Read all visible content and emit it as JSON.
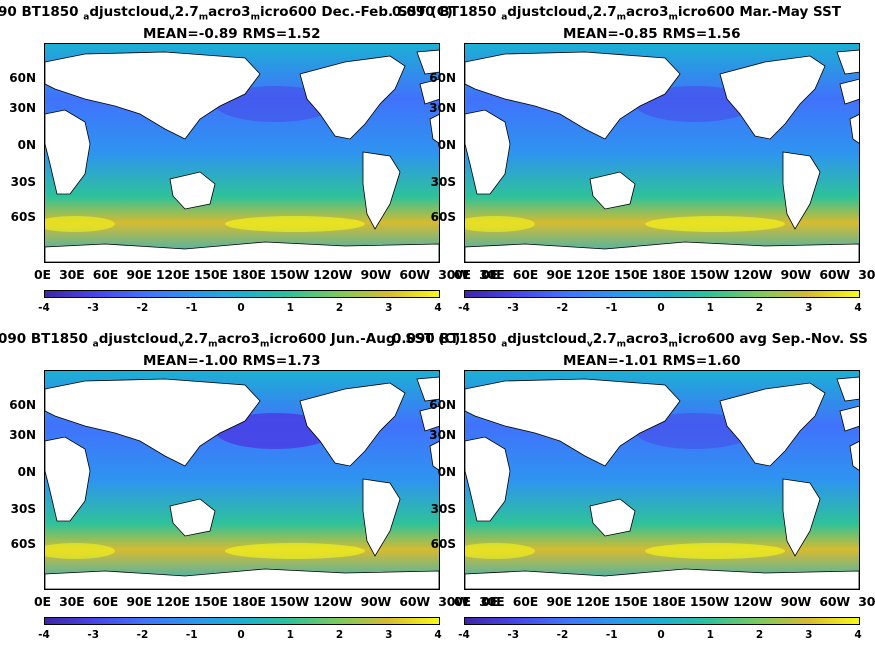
{
  "panels": [
    {
      "title_left": "90 BT1850",
      "title_s1": "djustcloud",
      "title_s2": "2.7",
      "title_s3": "acro3",
      "title_s4": "icro600",
      "title_overlap": "Dec.-Feb. SST (C)",
      "sub_a": "a",
      "sub_v": "v",
      "sub_m1": "m",
      "sub_m2": "m",
      "stats": "MEAN=-0.89   RMS=1.52"
    },
    {
      "title_left": "0.090 BT1850",
      "title_s1": "djustcloud",
      "title_s2": "2.7",
      "title_s3": "acro3",
      "title_s4": "icro600 Mar.-May SST",
      "title_overlap": "",
      "sub_a": "a",
      "sub_v": "v",
      "sub_m1": "m",
      "sub_m2": "m",
      "stats": "MEAN=-0.85   RMS=1.56"
    },
    {
      "title_left": "090 BT1850",
      "title_s1": "djustcloud",
      "title_s2": "2.7",
      "title_s3": "acro3",
      "title_s4": "icro600",
      "title_overlap": "Jun.-Aug. SST (C)",
      "sub_a": "a",
      "sub_v": "v",
      "sub_m1": "m",
      "sub_m2": "m",
      "stats": "MEAN=-1.00   RMS=1.73"
    },
    {
      "title_left": "0.090 BT1850",
      "title_s1": "djustcloud",
      "title_s2": "2.7",
      "title_s3": "acro3",
      "title_s4": "icro600 avg Sep.-Nov. SS",
      "title_overlap": "",
      "sub_a": "a",
      "sub_v": "v",
      "sub_m1": "m",
      "sub_m2": "m",
      "stats": "MEAN=-1.01   RMS=1.60"
    }
  ],
  "lat_labels": [
    "60N",
    "30N",
    "0N",
    "30S",
    "60S"
  ],
  "lon_labels": "0E  30E  60E  90E 120E 150E 180E 150W 120W  90W  60W  30W   0E",
  "colorbar_ticks": [
    "-4",
    "-3",
    "-2",
    "-1",
    "0",
    "1",
    "2",
    "3",
    "4"
  ],
  "colormap": [
    "#3e26a8",
    "#4172fc",
    "#1cb0d4",
    "#7fcb5a",
    "#f9fb15"
  ]
}
